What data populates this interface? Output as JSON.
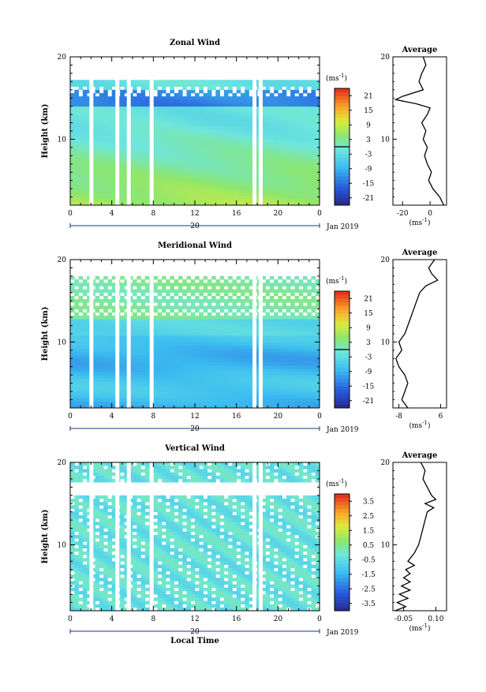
{
  "chart_data": [
    {
      "type": "heatmap",
      "title": "Zonal Wind",
      "ylabel": "Height (km)",
      "xlabel": "",
      "x_ticks": [
        "0",
        "4",
        "8",
        "12",
        "16",
        "20",
        "0"
      ],
      "x_range": [
        0,
        24
      ],
      "y_ticks": [
        "20",
        "10"
      ],
      "y_range": [
        2,
        20
      ],
      "date_label": "20",
      "date_right": "Jan 2019",
      "colorbar": {
        "unit_label": "(ms",
        "unit_exp": "-1",
        "unit_close": ")",
        "ticks": [
          "21",
          "15",
          "9",
          "3",
          "-3",
          "-9",
          "-15",
          "-21"
        ],
        "range": [
          -24,
          24
        ],
        "marker_value": 0
      },
      "missing_hours": [
        2.0,
        4.5,
        5.6,
        7.8,
        17.7,
        18.3
      ],
      "profile": {
        "title": "Average",
        "x_ticks": [
          "-20",
          "0"
        ],
        "x_tick_values": [
          -20,
          0
        ],
        "x_range": [
          -27,
          12
        ],
        "unit_label": "(ms",
        "unit_exp": "-1",
        "unit_close": ")",
        "y_ticks": [
          "20",
          "10"
        ],
        "heights": [
          2,
          3,
          4,
          5,
          6,
          7,
          8,
          9,
          10,
          11,
          12,
          13,
          13.8,
          14.3,
          14.8,
          15.2,
          16,
          17,
          18,
          19,
          20
        ],
        "values": [
          10,
          7,
          2,
          -1,
          1,
          -2,
          -4,
          -2,
          -5,
          -3,
          -6,
          -2,
          0,
          -10,
          -25,
          -20,
          -5,
          -8,
          -6,
          -3,
          -5
        ]
      }
    },
    {
      "type": "heatmap",
      "title": "Meridional Wind",
      "ylabel": "Height (km)",
      "xlabel": "",
      "x_ticks": [
        "0",
        "4",
        "8",
        "12",
        "16",
        "20",
        "0"
      ],
      "x_range": [
        0,
        24
      ],
      "y_ticks": [
        "20",
        "10"
      ],
      "y_range": [
        2,
        20
      ],
      "date_label": "20",
      "date_right": "Jan 2019",
      "colorbar": {
        "unit_label": "(ms",
        "unit_exp": "-1",
        "unit_close": ")",
        "ticks": [
          "21",
          "15",
          "9",
          "3",
          "-3",
          "-9",
          "-15",
          "-21"
        ],
        "range": [
          -24,
          24
        ],
        "marker_value": 0
      },
      "missing_hours": [
        2.0,
        4.5,
        5.6,
        7.8,
        17.7,
        18.3
      ],
      "profile": {
        "title": "Average",
        "x_ticks": [
          "-8",
          "6"
        ],
        "x_tick_values": [
          -8,
          6
        ],
        "x_range": [
          -10,
          8
        ],
        "unit_label": "(ms",
        "unit_exp": "-1",
        "unit_close": ")",
        "y_ticks": [
          "20",
          "10"
        ],
        "heights": [
          2,
          3,
          4,
          5,
          6,
          7,
          8,
          9,
          10,
          11,
          12,
          13,
          14,
          15,
          16,
          16.8,
          17.5,
          18.3,
          19,
          20
        ],
        "values": [
          -5,
          -7,
          -6,
          -5,
          -6,
          -8,
          -9,
          -7,
          -8,
          -6,
          -5,
          -4,
          -3,
          -2,
          -1,
          1,
          5,
          3,
          2,
          4
        ]
      }
    },
    {
      "type": "heatmap",
      "title": "Vertical Wind",
      "ylabel": "Height (km)",
      "xlabel": "Local Time",
      "x_ticks": [
        "0",
        "4",
        "8",
        "12",
        "16",
        "20",
        "0"
      ],
      "x_range": [
        0,
        24
      ],
      "y_ticks": [
        "20",
        "10"
      ],
      "y_range": [
        2,
        20
      ],
      "date_label": "20",
      "date_right": "Jan 2019",
      "colorbar": {
        "unit_label": "(ms",
        "unit_exp": "-1",
        "unit_close": ")",
        "ticks": [
          "3.5",
          "2.5",
          "1.5",
          "0.5",
          "-0.5",
          "-1.5",
          "-2.5",
          "-3.5"
        ],
        "range": [
          -4,
          4
        ]
      },
      "missing_hours": [
        2.0,
        4.5,
        5.6,
        7.8,
        17.7,
        18.3
      ],
      "profile": {
        "title": "Average",
        "x_ticks": [
          "-0.05",
          "0.10"
        ],
        "x_tick_values": [
          -0.05,
          0.1
        ],
        "x_range": [
          -0.1,
          0.15
        ],
        "unit_label": "(ms",
        "unit_exp": "-1",
        "unit_close": ")",
        "y_ticks": [
          "20",
          "10"
        ],
        "heights": [
          2,
          2.5,
          3,
          3.5,
          4,
          4.5,
          5,
          5.5,
          6,
          6.5,
          7,
          7.5,
          8,
          9,
          10,
          11,
          12,
          13,
          14,
          14.5,
          15,
          15.5,
          16,
          17,
          18,
          19,
          20
        ],
        "values": [
          -0.09,
          -0.04,
          -0.08,
          -0.03,
          -0.07,
          -0.02,
          -0.06,
          -0.02,
          -0.05,
          -0.02,
          -0.04,
          0.0,
          -0.03,
          0.0,
          0.02,
          0.03,
          0.04,
          0.05,
          0.06,
          0.09,
          0.05,
          0.1,
          0.08,
          0.06,
          0.04,
          0.05,
          0.03
        ]
      }
    }
  ]
}
